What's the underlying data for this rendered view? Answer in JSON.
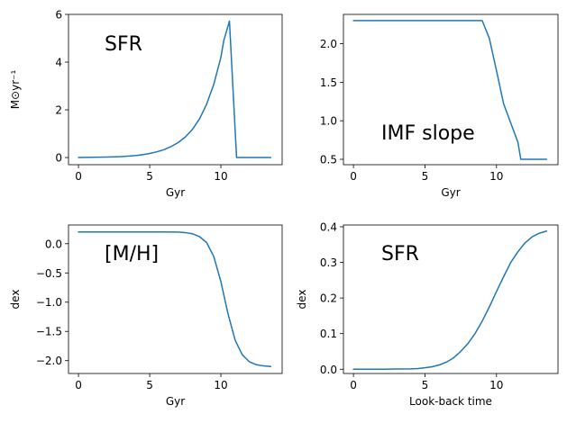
{
  "figure": {
    "background": "#ffffff",
    "line_color": "#1f77b4"
  },
  "chart_data": [
    {
      "type": "line",
      "annotation": "SFR",
      "xlabel": "Gyr",
      "ylabel": "M⊙yr⁻¹",
      "xlim": [
        -0.7,
        14.3
      ],
      "ylim": [
        -0.3,
        6.0
      ],
      "xticks": [
        0,
        5,
        10
      ],
      "xtick_labels": [
        "0",
        "5",
        "10"
      ],
      "yticks": [
        0,
        2,
        4,
        6
      ],
      "ytick_labels": [
        "0",
        "2",
        "4",
        "6"
      ],
      "series": [
        {
          "x": [
            0,
            1,
            2,
            3,
            4,
            4.5,
            5,
            5.5,
            6,
            6.5,
            7,
            7.5,
            8,
            8.5,
            9,
            9.5,
            10,
            10.2,
            10.6,
            11.1,
            13.5
          ],
          "y": [
            0.0,
            0.01,
            0.02,
            0.04,
            0.08,
            0.12,
            0.17,
            0.24,
            0.33,
            0.46,
            0.63,
            0.86,
            1.18,
            1.62,
            2.24,
            3.07,
            4.2,
            4.9,
            5.72,
            0.0,
            0.0
          ]
        }
      ]
    },
    {
      "type": "line",
      "annotation": "IMF slope",
      "xlabel": "Gyr",
      "ylabel": "",
      "xlim": [
        -0.7,
        14.3
      ],
      "ylim": [
        0.43,
        2.38
      ],
      "xticks": [
        0,
        5,
        10
      ],
      "xtick_labels": [
        "0",
        "5",
        "10"
      ],
      "yticks": [
        0.5,
        1.0,
        1.5,
        2.0
      ],
      "ytick_labels": [
        "0.5",
        "1.0",
        "1.5",
        "2.0"
      ],
      "series": [
        {
          "x": [
            0,
            9.0,
            9.5,
            10,
            10.5,
            11,
            11.5,
            11.7,
            12,
            13.5
          ],
          "y": [
            2.3,
            2.3,
            2.07,
            1.65,
            1.22,
            0.97,
            0.72,
            0.5,
            0.5,
            0.5
          ]
        }
      ]
    },
    {
      "type": "line",
      "annotation": "[M/H]",
      "xlabel": "Gyr",
      "ylabel": "dex",
      "xlim": [
        -0.7,
        14.3
      ],
      "ylim": [
        -2.22,
        0.32
      ],
      "xticks": [
        0,
        5,
        10
      ],
      "xtick_labels": [
        "0",
        "5",
        "10"
      ],
      "yticks": [
        0.0,
        -0.5,
        -1.0,
        -1.5,
        -2.0
      ],
      "ytick_labels": [
        "0.0",
        "−0.5",
        "−1.0",
        "−1.5",
        "−2.0"
      ],
      "series": [
        {
          "x": [
            0,
            2,
            4,
            6,
            7,
            7.5,
            8,
            8.5,
            9,
            9.5,
            10,
            10.5,
            11,
            11.5,
            12,
            12.5,
            13,
            13.5
          ],
          "y": [
            0.2,
            0.2,
            0.2,
            0.2,
            0.198,
            0.19,
            0.17,
            0.12,
            0.02,
            -0.22,
            -0.65,
            -1.2,
            -1.65,
            -1.9,
            -2.02,
            -2.07,
            -2.09,
            -2.1
          ]
        }
      ]
    },
    {
      "type": "line",
      "annotation": "SFR",
      "xlabel": "Look-back time",
      "ylabel": "dex",
      "xlim": [
        -0.7,
        14.3
      ],
      "ylim": [
        -0.012,
        0.405
      ],
      "xticks": [
        0,
        5,
        10
      ],
      "xtick_labels": [
        "0",
        "5",
        "10"
      ],
      "yticks": [
        0.0,
        0.1,
        0.2,
        0.3,
        0.4
      ],
      "ytick_labels": [
        "0.0",
        "0.1",
        "0.2",
        "0.3",
        "0.4"
      ],
      "series": [
        {
          "x": [
            0,
            1,
            2,
            3,
            4,
            4.5,
            5,
            5.5,
            6,
            6.5,
            7,
            7.5,
            8,
            8.5,
            9,
            9.5,
            10,
            10.5,
            11,
            11.5,
            12,
            12.5,
            13,
            13.5
          ],
          "y": [
            0.0,
            0.0,
            0.0,
            0.0005,
            0.001,
            0.002,
            0.004,
            0.007,
            0.012,
            0.02,
            0.032,
            0.05,
            0.072,
            0.1,
            0.135,
            0.175,
            0.218,
            0.26,
            0.3,
            0.33,
            0.355,
            0.372,
            0.382,
            0.388
          ]
        }
      ]
    }
  ]
}
